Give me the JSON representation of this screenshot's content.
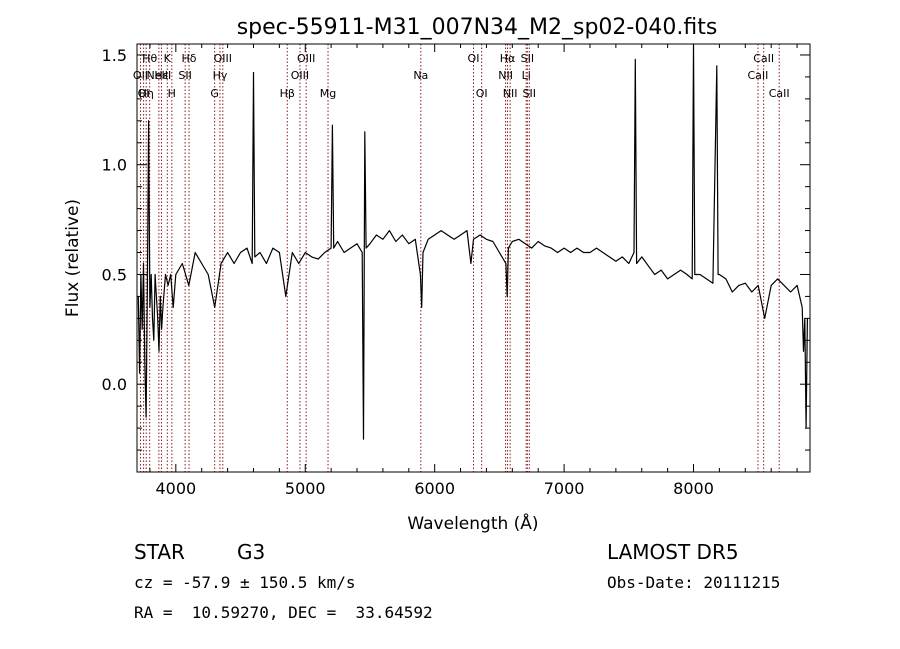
{
  "chart_data": {
    "type": "line",
    "title": "spec-55911-M31_007N34_M2_sp02-040.fits",
    "xlabel": "Wavelength (Å)",
    "ylabel": "Flux (relative)",
    "xlim": [
      3700,
      8900
    ],
    "ylim": [
      -0.4,
      1.55
    ],
    "xticks": [
      4000,
      5000,
      6000,
      7000,
      8000
    ],
    "yticks": [
      0.0,
      0.5,
      1.0,
      1.5
    ],
    "xtick_labels": [
      "4000",
      "5000",
      "6000",
      "7000",
      "8000"
    ],
    "ytick_labels": [
      "0.0",
      "0.5",
      "1.0",
      "1.5"
    ],
    "grid": false,
    "line_color": "#000000",
    "marker_color": "#8b1a1a",
    "series": [
      {
        "x": [
          3710,
          3720,
          3730,
          3740,
          3750,
          3760,
          3770,
          3780,
          3790,
          3800,
          3810,
          3820,
          3830,
          3840,
          3850,
          3860,
          3870,
          3880,
          3890,
          3900,
          3920,
          3940,
          3960,
          3980,
          4000,
          4050,
          4100,
          4150,
          4200,
          4250,
          4300,
          4350,
          4400,
          4450,
          4500,
          4550,
          4590,
          4600,
          4610,
          4650,
          4700,
          4750,
          4800,
          4850,
          4900,
          4950,
          5000,
          5050,
          5100,
          5150,
          5200,
          5210,
          5220,
          5250,
          5300,
          5350,
          5400,
          5440,
          5450,
          5460,
          5470,
          5500,
          5550,
          5600,
          5650,
          5700,
          5750,
          5800,
          5850,
          5890,
          5900,
          5910,
          5950,
          6000,
          6050,
          6100,
          6150,
          6200,
          6250,
          6280,
          6300,
          6350,
          6400,
          6450,
          6500,
          6550,
          6560,
          6570,
          6600,
          6650,
          6700,
          6750,
          6800,
          6850,
          6900,
          6950,
          7000,
          7050,
          7100,
          7150,
          7200,
          7250,
          7300,
          7350,
          7400,
          7450,
          7500,
          7540,
          7550,
          7560,
          7600,
          7650,
          7700,
          7750,
          7800,
          7850,
          7900,
          7950,
          7990,
          8000,
          8010,
          8050,
          8100,
          8150,
          8180,
          8190,
          8200,
          8250,
          8300,
          8350,
          8400,
          8450,
          8500,
          8550,
          8600,
          8650,
          8700,
          8750,
          8800,
          8840,
          8850,
          8860,
          8870,
          8880
        ],
        "y": [
          0.4,
          0.05,
          0.5,
          0.25,
          0.55,
          0.1,
          -0.15,
          0.45,
          1.2,
          0.35,
          0.5,
          0.3,
          0.2,
          0.5,
          0.4,
          0.3,
          0.15,
          0.4,
          0.25,
          0.35,
          0.5,
          0.45,
          0.5,
          0.35,
          0.5,
          0.55,
          0.45,
          0.6,
          0.55,
          0.5,
          0.35,
          0.55,
          0.6,
          0.55,
          0.6,
          0.62,
          0.55,
          1.42,
          0.58,
          0.6,
          0.55,
          0.62,
          0.6,
          0.4,
          0.6,
          0.55,
          0.6,
          0.58,
          0.57,
          0.6,
          0.62,
          1.18,
          0.62,
          0.65,
          0.6,
          0.62,
          0.64,
          0.6,
          -0.25,
          1.15,
          0.62,
          0.64,
          0.68,
          0.66,
          0.7,
          0.65,
          0.68,
          0.64,
          0.66,
          0.5,
          0.35,
          0.6,
          0.66,
          0.68,
          0.7,
          0.68,
          0.66,
          0.68,
          0.7,
          0.55,
          0.66,
          0.68,
          0.66,
          0.65,
          0.6,
          0.55,
          0.4,
          0.62,
          0.65,
          0.66,
          0.64,
          0.62,
          0.65,
          0.63,
          0.62,
          0.6,
          0.62,
          0.6,
          0.62,
          0.6,
          0.6,
          0.62,
          0.6,
          0.58,
          0.56,
          0.58,
          0.55,
          0.6,
          1.48,
          0.55,
          0.58,
          0.54,
          0.5,
          0.52,
          0.48,
          0.5,
          0.52,
          0.5,
          0.48,
          1.6,
          0.5,
          0.5,
          0.48,
          0.46,
          1.45,
          0.5,
          0.5,
          0.48,
          0.42,
          0.45,
          0.46,
          0.42,
          0.45,
          0.3,
          0.45,
          0.48,
          0.45,
          0.42,
          0.45,
          0.35,
          0.15,
          0.3,
          -0.2,
          0.3
        ]
      }
    ],
    "lines": [
      {
        "x": 3727,
        "label": "OII",
        "row": 1
      },
      {
        "x": 3751,
        "label": "OI",
        "row": 2
      },
      {
        "x": 3771,
        "label": "Hη",
        "row": 2
      },
      {
        "x": 3798,
        "label": "Hθ",
        "row": 0
      },
      {
        "x": 3869,
        "label": "NeIII",
        "row": 1
      },
      {
        "x": 3889,
        "label": "Hε",
        "row": 1
      },
      {
        "x": 3934,
        "label": "K",
        "row": 0
      },
      {
        "x": 3969,
        "label": "H",
        "row": 2
      },
      {
        "x": 4072,
        "label": "SII",
        "row": 1
      },
      {
        "x": 4102,
        "label": "Hδ",
        "row": 0
      },
      {
        "x": 4300,
        "label": "G",
        "row": 2
      },
      {
        "x": 4341,
        "label": "Hγ",
        "row": 1
      },
      {
        "x": 4363,
        "label": "OIII",
        "row": 0
      },
      {
        "x": 4861,
        "label": "Hβ",
        "row": 2
      },
      {
        "x": 4959,
        "label": "OIII",
        "row": 1
      },
      {
        "x": 5007,
        "label": "OIII",
        "row": 0
      },
      {
        "x": 5176,
        "label": "Mg",
        "row": 2
      },
      {
        "x": 5893,
        "label": "Na",
        "row": 1
      },
      {
        "x": 6300,
        "label": "OI",
        "row": 0
      },
      {
        "x": 6363,
        "label": "OI",
        "row": 2
      },
      {
        "x": 6548,
        "label": "NII",
        "row": 1
      },
      {
        "x": 6563,
        "label": "Hα",
        "row": 0
      },
      {
        "x": 6583,
        "label": "NII",
        "row": 2
      },
      {
        "x": 6707,
        "label": "Li",
        "row": 1
      },
      {
        "x": 6716,
        "label": "SII",
        "row": 0
      },
      {
        "x": 6731,
        "label": "SII",
        "row": 2
      },
      {
        "x": 8498,
        "label": "CaII",
        "row": 1
      },
      {
        "x": 8542,
        "label": "CaII",
        "row": 0
      },
      {
        "x": 8662,
        "label": "CaII",
        "row": 2
      }
    ]
  },
  "info": {
    "obj_class": "STAR",
    "obj_subclass": "G3",
    "survey": "LAMOST DR5",
    "redshift": "cz = -57.9 ± 150.5 km/s",
    "obs_date": "Obs-Date: 20111215",
    "coords": "RA =  10.59270, DEC =  33.64592"
  }
}
